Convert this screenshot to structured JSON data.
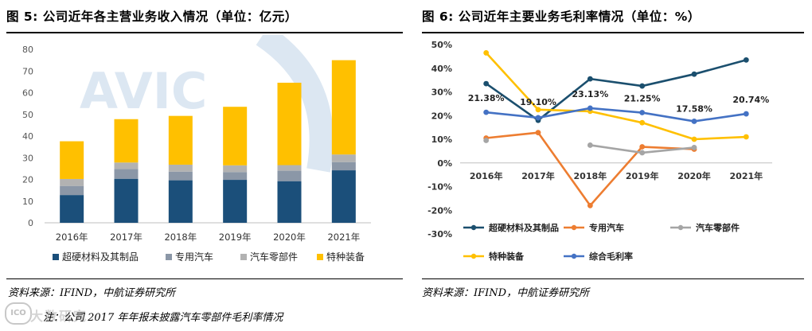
{
  "left": {
    "title": "图 5: 公司近年各主营业务收入情况（单位：亿元）",
    "source": "资料来源：IFIND，中航证券研究所",
    "watermark": "AVIC",
    "logo_mark": "ICO",
    "logo_text": "大数研究",
    "note": "注：公司 2017 年年报未披露汽车零部件毛利率情况",
    "colors": {
      "superhard": "#1b4f7a",
      "auto": "#8b97a7",
      "parts": "#b2b2b2",
      "special": "#ffc000",
      "watermark": "#dce7f2"
    }
  },
  "right": {
    "title": "图 6: 公司近年主要业务毛利率情况（单位：%）",
    "source": "资料来源：IFIND，中航证券研究所",
    "colors": {
      "superhard": "#1b4f6e",
      "auto": "#ed7d31",
      "parts": "#a5a5a5",
      "special": "#ffc000",
      "total": "#4472c4"
    }
  },
  "chart_data": [
    {
      "type": "bar",
      "stacked": true,
      "title": "图 5: 公司近年各主营业务收入情况（单位：亿元）",
      "categories": [
        "2016年",
        "2017年",
        "2018年",
        "2019年",
        "2020年",
        "2021年"
      ],
      "series": [
        {
          "name": "超硬材料及其制品",
          "values": [
            12.8,
            20.3,
            19.6,
            19.8,
            19.2,
            24.2
          ]
        },
        {
          "name": "专用汽车",
          "values": [
            4.2,
            4.5,
            4.0,
            3.6,
            4.8,
            3.8
          ]
        },
        {
          "name": "汽车零部件",
          "values": [
            3.2,
            3.0,
            3.2,
            3.1,
            2.6,
            3.5
          ]
        },
        {
          "name": "特种装备",
          "values": [
            17.4,
            20.0,
            22.5,
            27.0,
            38.0,
            43.5
          ]
        }
      ],
      "yticks": [
        "0",
        "10",
        "20",
        "30",
        "40",
        "50",
        "60",
        "70",
        "80"
      ],
      "ylim": [
        0,
        80
      ],
      "xlabel": "",
      "ylabel": "",
      "legend_position": "bottom"
    },
    {
      "type": "line",
      "title": "图 6: 公司近年主要业务毛利率情况（单位：%）",
      "categories": [
        "2016年",
        "2017年",
        "2018年",
        "2019年",
        "2020年",
        "2021年"
      ],
      "series": [
        {
          "name": "超硬材料及其制品",
          "values": [
            33.5,
            18.0,
            35.5,
            32.5,
            37.5,
            43.5
          ]
        },
        {
          "name": "专用汽车",
          "values": [
            10.5,
            12.8,
            -18.0,
            6.8,
            5.8,
            null
          ]
        },
        {
          "name": "汽车零部件",
          "values": [
            9.5,
            null,
            7.5,
            4.3,
            6.5,
            null
          ]
        },
        {
          "name": "特种装备",
          "values": [
            46.5,
            22.5,
            21.8,
            17.0,
            10.0,
            11.0
          ]
        },
        {
          "name": "综合毛利率",
          "values": [
            21.38,
            19.1,
            23.13,
            21.25,
            17.58,
            20.74
          ]
        }
      ],
      "data_labels": [
        "21.38%",
        "19.10%",
        "23.13%",
        "21.25%",
        "17.58%",
        "20.74%"
      ],
      "yticks": [
        "-30%",
        "-20%",
        "-10%",
        "0%",
        "10%",
        "20%",
        "30%",
        "40%",
        "50%"
      ],
      "ylim": [
        -30,
        50
      ],
      "xlabel": "",
      "ylabel": "",
      "legend_position": "bottom"
    }
  ]
}
